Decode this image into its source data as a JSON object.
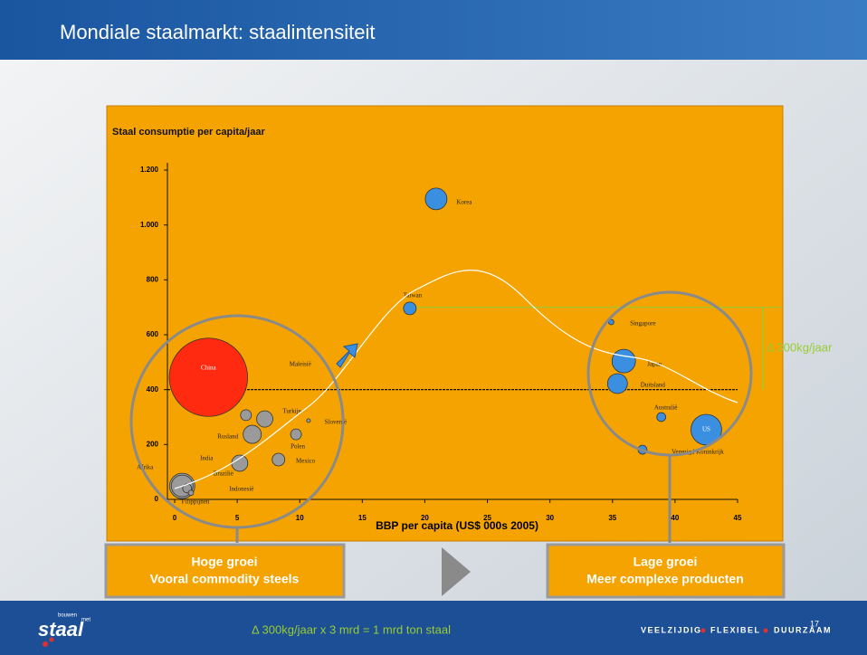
{
  "header": {
    "title": "Mondiale staalmarkt: staalintensiteit"
  },
  "chart_data": {
    "type": "bubble",
    "title": "Staal consumptie per capita/jaar",
    "x_label": "BBP per capita (US$  000s  2005)",
    "xlim": [
      0,
      45
    ],
    "xticks": [
      0,
      5,
      10,
      15,
      20,
      25,
      30,
      35,
      40,
      45
    ],
    "ylim": [
      0,
      1200
    ],
    "yticks": [
      0,
      200,
      400,
      600,
      800,
      {
        "value": 1000,
        "label": "1.000"
      },
      {
        "value": 1200,
        "label": "1.200"
      }
    ],
    "points": [
      {
        "label": "China",
        "x": 2.7,
        "y": 445,
        "size": 1300,
        "color": "#ff2a10"
      },
      {
        "label": "Korea",
        "x": 20.9,
        "y": 1095,
        "size": 100,
        "color": "#3b8fe0"
      },
      {
        "label": "Taiwan",
        "x": 18.8,
        "y": 696,
        "size": 34,
        "color": "#3b8fe0"
      },
      {
        "label": "Singapore",
        "x": 34.9,
        "y": 646,
        "size": 6,
        "color": "#3b8fe0"
      },
      {
        "label": "Japan",
        "x": 35.9,
        "y": 504,
        "size": 117,
        "color": "#3b8fe0"
      },
      {
        "label": "Duitsland",
        "x": 35.4,
        "y": 422,
        "size": 84,
        "color": "#3b8fe0"
      },
      {
        "label": "Australië",
        "x": 38.9,
        "y": 300,
        "size": 17,
        "color": "#3b8fe0"
      },
      {
        "label": "US",
        "x": 42.5,
        "y": 254,
        "size": 200,
        "color": "#3b8fe0"
      },
      {
        "label": "Verenigd Koninkrijk",
        "x": 37.4,
        "y": 181,
        "size": 17,
        "color": "#3b8fe0"
      },
      {
        "label": "Maleisië",
        "x": 5.7,
        "y": 307,
        "size": 25,
        "color": "#9a9a9a"
      },
      {
        "label": "Turkije",
        "x": 7.2,
        "y": 293,
        "size": 56,
        "color": "#9a9a9a"
      },
      {
        "label": "Rusland",
        "x": 6.2,
        "y": 237,
        "size": 70,
        "color": "#9a9a9a"
      },
      {
        "label": "Slovenië",
        "x": 10.7,
        "y": 287,
        "size": 3,
        "color": "#9a9a9a"
      },
      {
        "label": "Polen",
        "x": 9.7,
        "y": 237,
        "size": 25,
        "color": "#9a9a9a"
      },
      {
        "label": "Mexico",
        "x": 8.3,
        "y": 145,
        "size": 34,
        "color": "#9a9a9a"
      },
      {
        "label": "Brazilië",
        "x": 5.2,
        "y": 132,
        "size": 56,
        "color": "#9a9a9a"
      },
      {
        "label": "India",
        "x": 0.6,
        "y": 49,
        "size": 100,
        "color": "#9a9a9a"
      },
      {
        "label": "Afrika",
        "x": 0.6,
        "y": 49,
        "size": 136,
        "color": "#9a9a9a"
      },
      {
        "label": "Indonesië",
        "x": 1.0,
        "y": 40,
        "size": 17,
        "color": "#9a9a9a"
      },
      {
        "label": "Filippijnen",
        "x": 1.3,
        "y": 24,
        "size": 6,
        "color": "#9a9a9a"
      }
    ],
    "reference_lines": [
      {
        "value": 400,
        "color": "#000000"
      },
      {
        "value": 700,
        "color": "#99cc33"
      }
    ],
    "annotation": "Δ 300kg/jaar"
  },
  "callouts": [
    {
      "line1": "Hoge groei",
      "line2": "Vooral commodity steels"
    },
    {
      "line1": "Lage groei",
      "line2": "Meer complexe producten"
    }
  ],
  "footer": {
    "logo": "staal",
    "logo_top": "bouwen",
    "logo_side": "met",
    "formula": "Δ 300kg/jaar x 3 mrd = 1 mrd ton staal",
    "tagline": [
      "VEELZIJDIG",
      "FLEXIBEL",
      "DUURZAAM"
    ],
    "page": "17"
  }
}
